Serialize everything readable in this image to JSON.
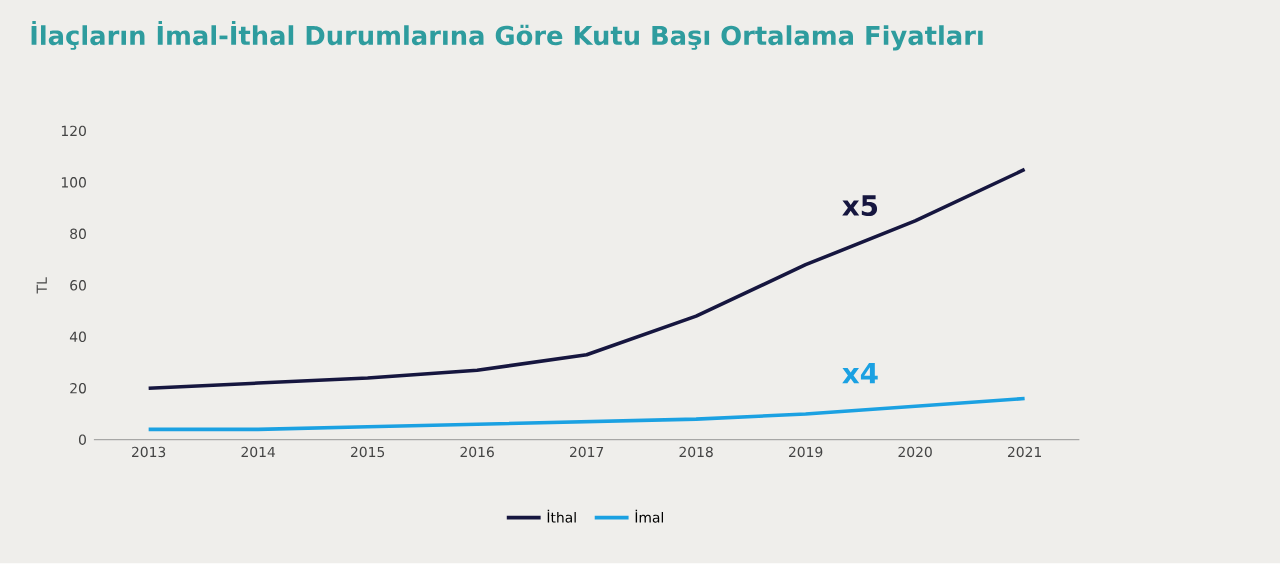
{
  "chart_data": {
    "type": "line",
    "title": "İlaçların İmal-İthal Durumlarına Göre Kutu Başı Ortalama Fiyatları",
    "ylabel": "TL",
    "categories": [
      "2013",
      "2014",
      "2015",
      "2016",
      "2017",
      "2018",
      "2019",
      "2020",
      "2021"
    ],
    "series": [
      {
        "name": "İthal",
        "color": "#16163f",
        "values": [
          20,
          22,
          24,
          27,
          33,
          48,
          68,
          85,
          105
        ]
      },
      {
        "name": "İmal",
        "color": "#1ba1e2",
        "values": [
          4,
          4,
          5,
          6,
          7,
          8,
          10,
          13,
          16
        ]
      }
    ],
    "ylim": [
      0,
      120
    ],
    "yticks": [
      0,
      20,
      40,
      60,
      80,
      100,
      120
    ],
    "annotations": [
      "x5",
      "x4"
    ],
    "legend": "bottom",
    "grid": false,
    "marker": "none",
    "line_style": "solid"
  }
}
